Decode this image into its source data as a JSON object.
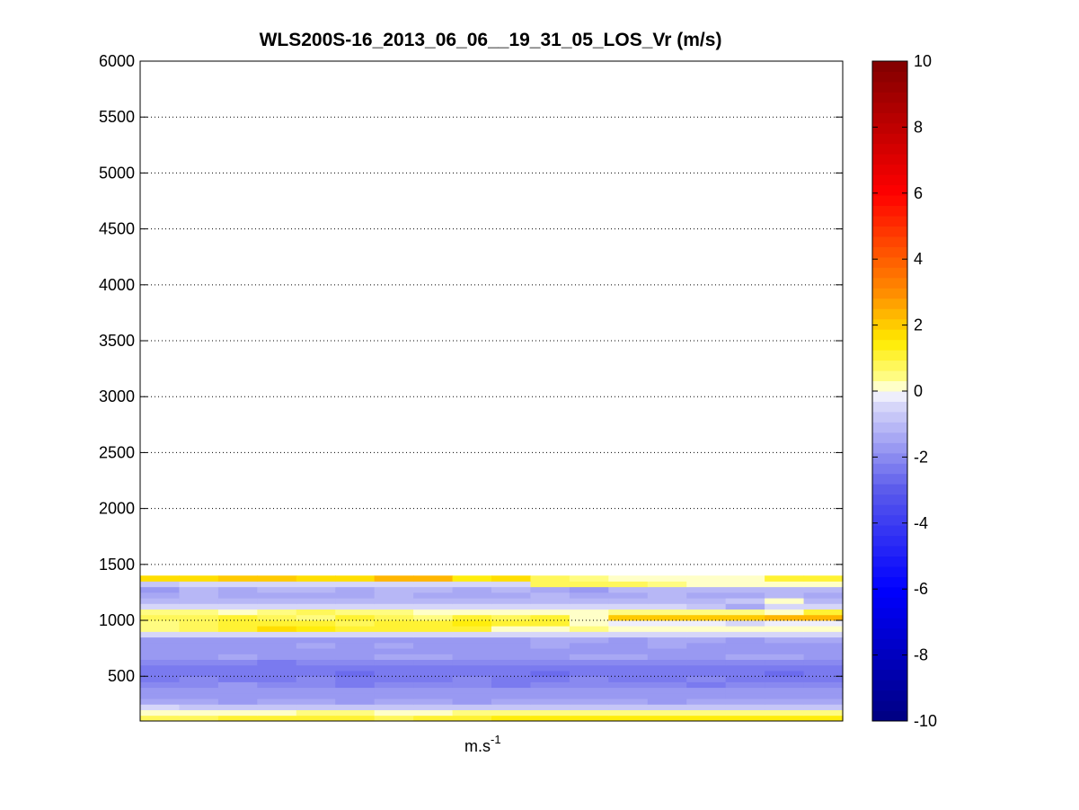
{
  "chart_data": {
    "type": "heatmap",
    "title": "WLS200S-16_2013_06_06__19_31_05_LOS_Vr (m/s)",
    "xlabel": "m.s",
    "xlabel_superscript": "-1",
    "ylabel": "",
    "ylim": [
      100,
      6000
    ],
    "yticks": [
      500,
      1000,
      1500,
      2000,
      2500,
      3000,
      3500,
      4000,
      4500,
      5000,
      5500,
      6000
    ],
    "grid": "horizontal-dotted",
    "colorbar": {
      "range": [
        -10,
        10
      ],
      "ticks": [
        -10,
        -8,
        -6,
        -4,
        -2,
        0,
        2,
        4,
        6,
        8,
        10
      ],
      "colormap": "blue-white-yellow-red"
    },
    "columns": 18,
    "rows": [
      {
        "bin": [
          100,
          150
        ],
        "values": [
          0.8,
          0.8,
          1.2,
          1.2,
          1.2,
          1.2,
          0.8,
          1.2,
          1.2,
          1.5,
          1.5,
          1.5,
          1.5,
          1.5,
          1.5,
          1.5,
          1.5,
          1.5
        ]
      },
      {
        "bin": [
          150,
          200
        ],
        "values": [
          0.3,
          0.3,
          0.3,
          0.3,
          0.6,
          0.6,
          0.3,
          0.3,
          0.6,
          0.6,
          0.6,
          0.6,
          0.6,
          0.6,
          0.6,
          0.6,
          0.6,
          0.6
        ]
      },
      {
        "bin": [
          200,
          250
        ],
        "values": [
          -0.6,
          -0.8,
          -0.8,
          -0.8,
          -0.8,
          -0.8,
          -0.8,
          -0.8,
          -0.8,
          -0.8,
          -0.8,
          -0.8,
          -0.8,
          -0.8,
          -0.8,
          -0.8,
          -0.8,
          -0.8
        ]
      },
      {
        "bin": [
          250,
          300
        ],
        "values": [
          -1.4,
          -1.4,
          -1.6,
          -1.4,
          -1.4,
          -1.6,
          -1.4,
          -1.4,
          -1.6,
          -1.4,
          -1.4,
          -1.4,
          -1.4,
          -1.6,
          -1.4,
          -1.4,
          -1.4,
          -1.4
        ]
      },
      {
        "bin": [
          300,
          350
        ],
        "values": [
          -1.6,
          -1.8,
          -1.6,
          -1.6,
          -1.8,
          -1.8,
          -1.6,
          -1.6,
          -1.6,
          -1.8,
          -1.6,
          -1.6,
          -1.8,
          -1.8,
          -1.6,
          -1.6,
          -1.8,
          -1.6
        ]
      },
      {
        "bin": [
          350,
          400
        ],
        "values": [
          -1.8,
          -1.6,
          -1.8,
          -1.8,
          -1.6,
          -1.8,
          -1.8,
          -1.8,
          -1.6,
          -1.8,
          -1.8,
          -1.8,
          -1.6,
          -1.8,
          -1.8,
          -1.8,
          -1.6,
          -1.8
        ]
      },
      {
        "bin": [
          400,
          450
        ],
        "values": [
          -2.0,
          -2.0,
          -1.8,
          -2.0,
          -2.0,
          -2.2,
          -2.0,
          -2.0,
          -2.0,
          -2.2,
          -2.0,
          -2.0,
          -2.0,
          -2.0,
          -2.2,
          -2.0,
          -2.0,
          -2.0
        ]
      },
      {
        "bin": [
          450,
          500
        ],
        "values": [
          -2.2,
          -2.0,
          -2.2,
          -2.2,
          -2.0,
          -2.2,
          -2.2,
          -2.2,
          -2.0,
          -2.2,
          -2.2,
          -2.0,
          -2.2,
          -2.2,
          -2.0,
          -2.2,
          -2.2,
          -2.2
        ]
      },
      {
        "bin": [
          500,
          550
        ],
        "values": [
          -2.4,
          -2.2,
          -2.2,
          -2.4,
          -2.4,
          -2.6,
          -2.4,
          -2.4,
          -2.2,
          -2.4,
          -2.6,
          -2.4,
          -2.4,
          -2.2,
          -2.4,
          -2.4,
          -2.6,
          -2.4
        ]
      },
      {
        "bin": [
          550,
          600
        ],
        "values": [
          -2.2,
          -2.2,
          -2.4,
          -2.2,
          -2.2,
          -2.4,
          -2.2,
          -2.2,
          -2.4,
          -2.2,
          -2.2,
          -2.4,
          -2.4,
          -2.2,
          -2.2,
          -2.4,
          -2.2,
          -2.4
        ]
      },
      {
        "bin": [
          600,
          650
        ],
        "values": [
          -2.0,
          -2.0,
          -2.0,
          -2.2,
          -2.0,
          -2.0,
          -2.0,
          -2.0,
          -2.0,
          -2.0,
          -2.0,
          -2.0,
          -2.0,
          -2.0,
          -2.0,
          -2.0,
          -2.0,
          -2.0
        ]
      },
      {
        "bin": [
          650,
          700
        ],
        "values": [
          -1.6,
          -1.6,
          -1.4,
          -1.6,
          -1.6,
          -1.6,
          -1.4,
          -1.4,
          -1.6,
          -1.6,
          -1.6,
          -1.4,
          -1.4,
          -1.6,
          -1.6,
          -1.4,
          -1.4,
          -1.6
        ]
      },
      {
        "bin": [
          700,
          750
        ],
        "values": [
          -1.8,
          -1.8,
          -1.8,
          -1.8,
          -1.6,
          -1.8,
          -1.8,
          -1.8,
          -1.8,
          -1.8,
          -1.8,
          -1.8,
          -1.8,
          -1.8,
          -1.8,
          -1.8,
          -1.8,
          -1.8
        ]
      },
      {
        "bin": [
          750,
          800
        ],
        "values": [
          -1.6,
          -1.6,
          -1.6,
          -1.6,
          -1.4,
          -1.6,
          -1.4,
          -1.6,
          -1.6,
          -1.6,
          -1.4,
          -1.6,
          -1.6,
          -1.4,
          -1.6,
          -1.6,
          -1.6,
          -1.6
        ]
      },
      {
        "bin": [
          800,
          850
        ],
        "values": [
          -1.8,
          -1.8,
          -1.6,
          -1.6,
          -1.8,
          -1.6,
          -1.8,
          -1.6,
          -1.6,
          -1.6,
          -1.4,
          -1.4,
          -1.6,
          -1.4,
          -1.4,
          -1.6,
          -1.4,
          -1.4
        ]
      },
      {
        "bin": [
          850,
          900
        ],
        "values": [
          -0.4,
          -0.4,
          -0.4,
          -0.6,
          -0.6,
          -0.4,
          -0.6,
          -0.4,
          -0.4,
          -0.4,
          -0.4,
          -0.6,
          -0.4,
          -0.4,
          -0.4,
          -0.4,
          -0.6,
          -0.4
        ]
      },
      {
        "bin": [
          900,
          950
        ],
        "values": [
          0.6,
          0.8,
          1.2,
          1.6,
          1.4,
          1.2,
          1.2,
          1.2,
          1.0,
          0.3,
          0.3,
          0.6,
          0.3,
          0.3,
          0.3,
          0.3,
          0.3,
          0.3
        ]
      },
      {
        "bin": [
          950,
          1000
        ],
        "values": [
          0.6,
          0.8,
          1.2,
          1.2,
          1.0,
          0.8,
          1.2,
          1.0,
          1.4,
          1.2,
          1.0,
          0.3,
          -0.2,
          -0.2,
          -0.2,
          -0.4,
          -0.2,
          -0.2
        ]
      },
      {
        "bin": [
          1000,
          1050
        ],
        "values": [
          0.8,
          0.8,
          1.0,
          0.8,
          0.6,
          1.0,
          0.8,
          0.6,
          1.2,
          0.8,
          1.2,
          0.3,
          2.0,
          2.0,
          2.0,
          2.0,
          2.2,
          2.2
        ]
      },
      {
        "bin": [
          1050,
          1100
        ],
        "values": [
          0.6,
          0.6,
          0.3,
          0.6,
          0.8,
          0.6,
          0.6,
          0.3,
          0.3,
          0.3,
          0.3,
          0.3,
          0.6,
          0.6,
          0.6,
          0.6,
          0.3,
          1.2
        ]
      },
      {
        "bin": [
          1100,
          1150
        ],
        "values": [
          -0.4,
          -0.4,
          -0.4,
          -0.4,
          -0.4,
          -0.6,
          -0.4,
          -0.4,
          -0.4,
          -0.4,
          -0.6,
          -0.4,
          -0.6,
          -0.4,
          -0.8,
          -1.4,
          -0.6,
          -0.6
        ]
      },
      {
        "bin": [
          1150,
          1200
        ],
        "values": [
          -1.2,
          -1.2,
          -1.0,
          -1.2,
          -1.2,
          -1.0,
          -1.0,
          -1.2,
          -1.2,
          -1.0,
          -1.2,
          -1.2,
          -1.0,
          -1.2,
          -1.0,
          -0.8,
          0.0,
          -1.0
        ]
      },
      {
        "bin": [
          1200,
          1250
        ],
        "values": [
          -1.4,
          -1.2,
          -1.4,
          -1.4,
          -1.4,
          -1.4,
          -1.2,
          -1.4,
          -1.4,
          -1.4,
          -1.2,
          -1.4,
          -1.4,
          -1.2,
          -1.4,
          -1.4,
          -1.2,
          -1.4
        ]
      },
      {
        "bin": [
          1250,
          1300
        ],
        "values": [
          -1.6,
          -1.2,
          -1.4,
          -1.2,
          -1.2,
          -1.4,
          -1.2,
          -1.2,
          -1.4,
          -1.2,
          -1.4,
          -1.6,
          -1.2,
          -1.2,
          -1.2,
          -1.2,
          -1.2,
          -1.2
        ]
      },
      {
        "bin": [
          1300,
          1350
        ],
        "values": [
          -0.8,
          -0.4,
          -0.6,
          -0.6,
          -0.4,
          -0.6,
          -0.6,
          -0.4,
          -0.6,
          -0.4,
          0.8,
          0.8,
          0.8,
          0.6,
          0.3,
          0.3,
          0.3,
          0.3
        ]
      },
      {
        "bin": [
          1350,
          1400
        ],
        "values": [
          1.6,
          1.6,
          2.0,
          2.0,
          1.6,
          1.8,
          2.4,
          2.2,
          1.4,
          1.6,
          0.8,
          0.6,
          0.3,
          0.3,
          0.3,
          0.3,
          1.2,
          1.2
        ]
      }
    ]
  }
}
